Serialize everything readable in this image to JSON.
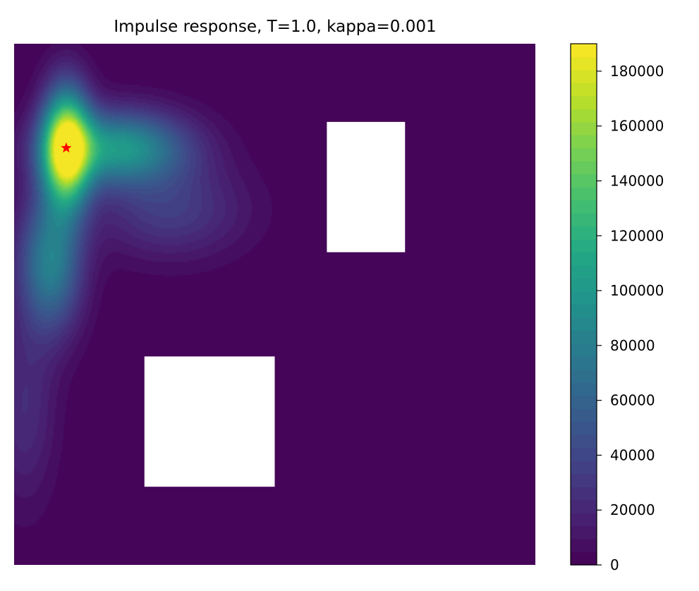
{
  "chart_data": {
    "type": "heatmap",
    "title": "Impulse response, T=1.0, kappa=0.001",
    "xlabel": "",
    "ylabel": "",
    "axes_visible": false,
    "colormap": "viridis",
    "domain": {
      "x": [
        0,
        1
      ],
      "y": [
        0,
        1
      ]
    },
    "source_marker": {
      "x": 0.1,
      "y": 0.8,
      "symbol": "star",
      "color": "#ff0000"
    },
    "obstacles": [
      {
        "name": "upper-right-block",
        "x": [
          0.6,
          0.75
        ],
        "y": [
          0.6,
          0.85
        ],
        "color": "#ffffff"
      },
      {
        "name": "lower-middle-block",
        "x": [
          0.25,
          0.5
        ],
        "y": [
          0.15,
          0.4
        ],
        "color": "#ffffff"
      }
    ],
    "peak_value": 190000,
    "plume_description_values": {
      "center": {
        "x": 0.1,
        "y": 0.8
      }
    },
    "colorbar": {
      "min": 0,
      "max": 190000,
      "levels": 40,
      "ticks": [
        0,
        20000,
        40000,
        60000,
        80000,
        100000,
        120000,
        140000,
        160000,
        180000
      ],
      "tick_labels": [
        "0",
        "20000",
        "40000",
        "60000",
        "80000",
        "100000",
        "120000",
        "140000",
        "160000",
        "180000"
      ]
    },
    "grid": false
  }
}
